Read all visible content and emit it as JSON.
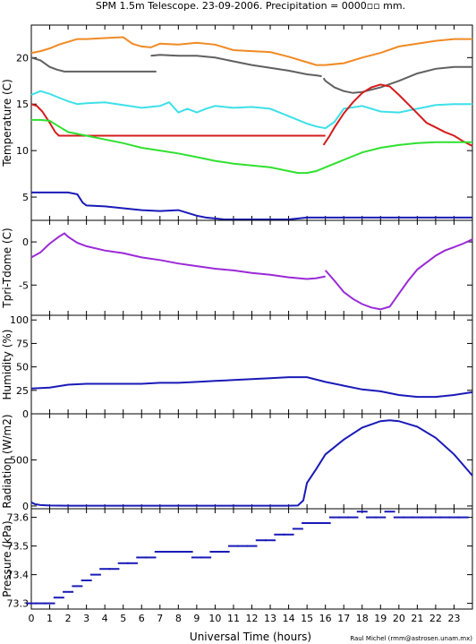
{
  "title": "SPM 1.5m Telescope. 23-09-2006. Precipitation = 0000▫▫ mm.",
  "credit": "Raul Michel (rmm@astrosen.unam.mx)",
  "xlabel": "Universal Time (hours)",
  "xticks": [
    "0",
    "1",
    "2",
    "3",
    "4",
    "5",
    "6",
    "7",
    "8",
    "9",
    "10",
    "11",
    "12",
    "13",
    "14",
    "15",
    "16",
    "17",
    "18",
    "19",
    "20",
    "21",
    "22",
    "23"
  ],
  "colors": {
    "orange": "#f08a24",
    "gray": "#606060",
    "cyan": "#3ee0e8",
    "red": "#d41c1c",
    "green": "#30e030",
    "blue": "#1a1ab8",
    "purple": "#9a2ad6"
  },
  "chart_data": [
    {
      "type": "line",
      "ylabel": "Temperature (C)",
      "xlim": [
        0,
        24
      ],
      "ylim": [
        2.5,
        23.5
      ],
      "yticks": [
        5,
        10,
        15,
        20
      ],
      "series": [
        {
          "color": "orange",
          "x": [
            0,
            0.5,
            1,
            1.5,
            2,
            2.5,
            3,
            4,
            5,
            5.5,
            6,
            6.5,
            7,
            8,
            9,
            10,
            11,
            12,
            13,
            14,
            15,
            15.5,
            16,
            17,
            18,
            19,
            20,
            21,
            22,
            23,
            24
          ],
          "y": [
            20.5,
            20.7,
            21,
            21.4,
            21.7,
            22,
            22,
            22.1,
            22.2,
            21.5,
            21.2,
            21.1,
            21.5,
            21.4,
            21.6,
            21.4,
            20.8,
            20.7,
            20.6,
            20.1,
            19.5,
            19.2,
            19.2,
            19.4,
            20.0,
            20.5,
            21.2,
            21.5,
            21.8,
            22.0,
            22.0
          ]
        },
        {
          "color": "gray",
          "x": [
            0,
            0.5,
            1,
            1.4,
            1.8,
            2,
            3,
            4,
            5,
            6,
            6.8
          ],
          "y": [
            20,
            19.7,
            19.0,
            18.7,
            18.5,
            18.5,
            18.5,
            18.5,
            18.5,
            18.5,
            18.5
          ]
        },
        {
          "color": "gray",
          "x": [
            6.5,
            7,
            8,
            9,
            10,
            11,
            12,
            13,
            14,
            15,
            15.5,
            15.8
          ],
          "y": [
            20.2,
            20.3,
            20.2,
            20.2,
            20.0,
            19.6,
            19.2,
            18.9,
            18.6,
            18.2,
            18.1,
            18.0
          ]
        },
        {
          "color": "gray",
          "x": [
            15.9,
            16,
            16.5,
            17,
            17.5,
            18,
            19,
            20,
            21,
            22,
            23,
            24
          ],
          "y": [
            17.8,
            17.5,
            16.8,
            16.4,
            16.2,
            16.3,
            16.8,
            17.5,
            18.3,
            18.8,
            19.0,
            19.0
          ]
        },
        {
          "color": "cyan",
          "x": [
            0,
            0.5,
            1,
            1.5,
            2,
            2.5,
            3,
            4,
            5,
            6,
            7,
            7.5,
            8,
            8.5,
            9,
            9.5,
            10,
            11,
            12,
            13,
            14,
            15,
            15.5,
            16,
            16.5,
            17,
            18,
            19,
            20,
            21,
            22,
            23,
            24
          ],
          "y": [
            16.0,
            16.4,
            16.1,
            15.7,
            15.3,
            15.0,
            15.1,
            15.2,
            14.9,
            14.6,
            14.8,
            15.2,
            14.1,
            14.5,
            14.1,
            14.5,
            14.8,
            14.6,
            14.7,
            14.5,
            13.7,
            12.9,
            12.6,
            12.4,
            13.1,
            14.5,
            14.8,
            14.2,
            14.1,
            14.5,
            14.9,
            15.0,
            15.0
          ]
        },
        {
          "color": "red",
          "x": [
            0,
            0.3,
            0.6,
            1,
            1.3,
            1.5,
            2,
            3,
            4,
            5,
            6,
            7,
            8,
            9,
            10,
            11,
            12,
            13,
            14,
            15,
            15.5,
            16
          ],
          "y": [
            15.0,
            14.8,
            14.2,
            13.0,
            12.0,
            11.6,
            11.6,
            11.6,
            11.6,
            11.6,
            11.6,
            11.6,
            11.6,
            11.6,
            11.6,
            11.6,
            11.6,
            11.6,
            11.6,
            11.6,
            11.6,
            11.6
          ]
        },
        {
          "color": "red",
          "x": [
            15.9,
            16.2,
            16.5,
            17,
            17.5,
            18,
            18.5,
            19,
            19.5,
            20,
            20.5,
            21,
            21.5,
            22,
            22.5,
            23,
            23.5,
            24
          ],
          "y": [
            10.6,
            11.5,
            12.5,
            14.0,
            15.2,
            16.2,
            16.8,
            17.1,
            16.9,
            16.0,
            15.0,
            14.0,
            13.0,
            12.5,
            12.0,
            11.6,
            11.0,
            10.5
          ]
        },
        {
          "color": "green",
          "x": [
            0,
            0.5,
            1,
            1.5,
            2,
            3,
            4,
            5,
            6,
            7,
            8,
            9,
            10,
            11,
            12,
            13,
            14,
            14.5,
            15,
            15.5,
            16,
            17,
            18,
            19,
            20,
            21,
            22,
            23,
            24
          ],
          "y": [
            13.3,
            13.3,
            13.2,
            12.6,
            12.0,
            11.6,
            11.2,
            10.8,
            10.3,
            10.0,
            9.7,
            9.3,
            8.9,
            8.6,
            8.4,
            8.2,
            7.8,
            7.6,
            7.6,
            7.8,
            8.2,
            9.0,
            9.8,
            10.3,
            10.6,
            10.8,
            10.9,
            10.9,
            10.9
          ]
        },
        {
          "color": "blue",
          "x": [
            0,
            0.5,
            1,
            1.5,
            2,
            2.5,
            2.8,
            3,
            4,
            5,
            6,
            7,
            8,
            8.5,
            9,
            9.5,
            10,
            10.5,
            11,
            12,
            13,
            14,
            15,
            16,
            17,
            18,
            19,
            20,
            21,
            22,
            23,
            24
          ],
          "y": [
            5.5,
            5.5,
            5.5,
            5.5,
            5.5,
            5.3,
            4.4,
            4.1,
            4.0,
            3.8,
            3.6,
            3.5,
            3.6,
            3.3,
            3.0,
            2.8,
            2.7,
            2.6,
            2.6,
            2.6,
            2.6,
            2.6,
            2.8,
            2.8,
            2.8,
            2.8,
            2.8,
            2.8,
            2.8,
            2.8,
            2.8,
            2.8
          ]
        }
      ]
    },
    {
      "type": "line",
      "ylabel": "Tpri-Tdome (C)",
      "xlim": [
        0,
        24
      ],
      "ylim": [
        -8.5,
        2.5
      ],
      "yticks": [
        -5,
        0
      ],
      "series": [
        {
          "color": "purple",
          "x": [
            0,
            0.5,
            1,
            1.5,
            1.8,
            2,
            2.5,
            3,
            4,
            5,
            6,
            7,
            8,
            9,
            10,
            11,
            12,
            13,
            14,
            15,
            15.5,
            16
          ],
          "y": [
            -1.8,
            -1.2,
            -0.2,
            0.6,
            1.0,
            0.6,
            -0.1,
            -0.5,
            -1.0,
            -1.3,
            -1.8,
            -2.1,
            -2.5,
            -2.8,
            -3.1,
            -3.3,
            -3.6,
            -3.8,
            -4.1,
            -4.3,
            -4.2,
            -4.0
          ]
        },
        {
          "color": "purple",
          "x": [
            16,
            16.5,
            17,
            17.5,
            18,
            18.5,
            19,
            19.5,
            20,
            20.5,
            21,
            21.5,
            22,
            22.5,
            23,
            23.5,
            24
          ],
          "y": [
            -3.3,
            -4.5,
            -5.8,
            -6.6,
            -7.2,
            -7.6,
            -7.8,
            -7.5,
            -6.0,
            -4.5,
            -3.2,
            -2.4,
            -1.6,
            -1.0,
            -0.6,
            -0.2,
            0.3
          ]
        }
      ]
    },
    {
      "type": "line",
      "ylabel": "Humidity (%)",
      "xlim": [
        0,
        24
      ],
      "ylim": [
        0,
        105
      ],
      "yticks": [
        0,
        25,
        50,
        75,
        100
      ],
      "series": [
        {
          "color": "blue",
          "x": [
            0,
            1,
            2,
            3,
            4,
            5,
            6,
            7,
            8,
            9,
            10,
            11,
            12,
            13,
            14,
            15,
            16,
            17,
            18,
            19,
            20,
            21,
            22,
            23,
            24
          ],
          "y": [
            27,
            28,
            31,
            32,
            32,
            32,
            32,
            33,
            33,
            34,
            35,
            36,
            37,
            38,
            39,
            39,
            34,
            30,
            26,
            24,
            20,
            18,
            18,
            20,
            23
          ]
        }
      ]
    },
    {
      "type": "line",
      "ylabel": "Radiation (W/m2)",
      "xlim": [
        0,
        24
      ],
      "ylim": [
        -30,
        1000
      ],
      "yticks": [
        0,
        500
      ],
      "series": [
        {
          "color": "blue",
          "x": [
            0,
            0.2,
            0.5,
            1,
            2,
            3,
            4,
            5,
            6,
            7,
            8,
            9,
            10,
            11,
            12,
            13,
            14,
            14.5,
            14.8,
            15,
            15.5,
            16,
            17,
            18,
            19,
            19.5,
            20,
            21,
            22,
            23,
            24
          ],
          "y": [
            40,
            20,
            10,
            5,
            3,
            3,
            3,
            3,
            3,
            3,
            3,
            3,
            3,
            3,
            3,
            3,
            3,
            5,
            60,
            250,
            400,
            560,
            720,
            850,
            920,
            930,
            920,
            860,
            740,
            560,
            330
          ]
        }
      ]
    },
    {
      "type": "scatter",
      "ylabel": "Pressure (kPa)",
      "xlim": [
        0,
        24
      ],
      "ylim": [
        73.28,
        73.63
      ],
      "ytick_labels": [
        "73.3",
        "73.4",
        "73.5",
        "73.6"
      ],
      "yticks": [
        73.3,
        73.4,
        73.5,
        73.6
      ],
      "series": [
        {
          "color": "blue",
          "x": [
            0,
            0.5,
            1,
            1.5,
            2,
            2.5,
            3,
            3.5,
            4,
            4.5,
            5,
            5.5,
            6,
            6.5,
            7,
            7.5,
            8,
            8.5,
            9,
            9.5,
            10,
            10.5,
            11,
            11.5,
            12,
            12.5,
            13,
            13.5,
            14,
            14.5,
            15,
            15.5,
            16,
            16.5,
            17,
            17.5,
            18,
            18.5,
            19,
            19.5,
            20,
            20.5,
            21,
            21.5,
            22,
            22.5,
            23,
            23.5
          ],
          "y": [
            73.3,
            73.3,
            73.3,
            73.32,
            73.34,
            73.36,
            73.38,
            73.4,
            73.42,
            73.42,
            73.44,
            73.44,
            73.46,
            73.46,
            73.48,
            73.48,
            73.48,
            73.48,
            73.46,
            73.46,
            73.48,
            73.48,
            73.5,
            73.5,
            73.5,
            73.52,
            73.52,
            73.54,
            73.54,
            73.56,
            73.58,
            73.58,
            73.58,
            73.6,
            73.6,
            73.6,
            73.62,
            73.6,
            73.6,
            73.62,
            73.6,
            73.6,
            73.6,
            73.6,
            73.6,
            73.6,
            73.6,
            73.6
          ]
        }
      ]
    }
  ]
}
